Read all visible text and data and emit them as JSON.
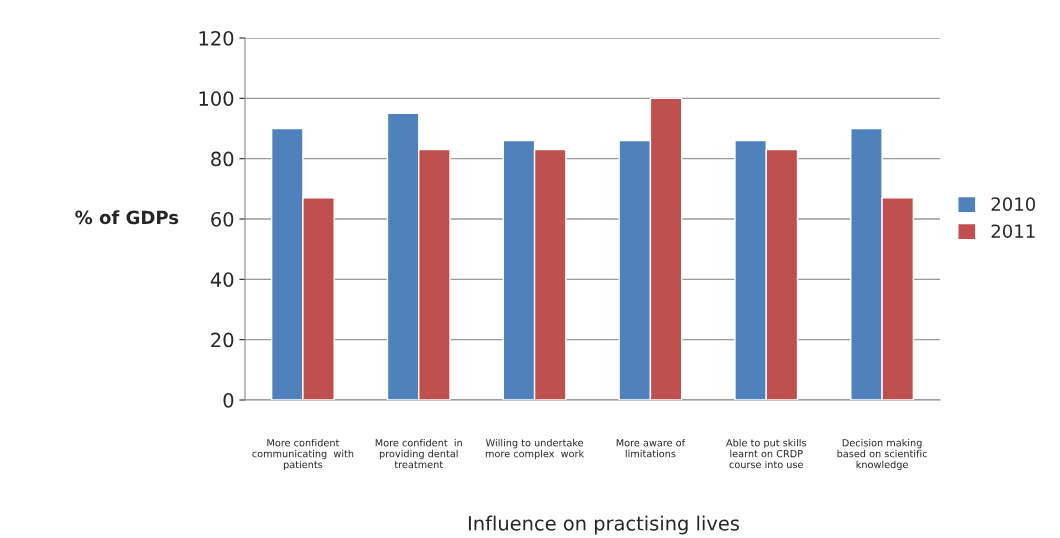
{
  "chart_data": {
    "type": "bar",
    "xlabel": "Influence on practising lives",
    "ylabel": "% of GDPs",
    "categories": [
      "More confident\ncommunicating  with\npatients",
      "More confident  in\nproviding dental\ntreatment",
      "Willing to undertake\nmore complex  work",
      "More aware of\nlimitations",
      "Able to put skills\nlearnt on CRDP\ncourse into use",
      "Decision making\nbased on scientific\nknowledge"
    ],
    "series": [
      {
        "name": "2010",
        "color": "#4f81bd",
        "values": [
          90,
          95,
          86,
          86,
          86,
          90
        ]
      },
      {
        "name": "2011",
        "color": "#c0504d",
        "values": [
          67,
          83,
          83,
          100,
          83,
          67
        ]
      }
    ],
    "ylim": [
      0,
      120
    ],
    "yticks": [
      0,
      20,
      40,
      60,
      80,
      100,
      120
    ],
    "grid": "y",
    "legend": "right"
  }
}
